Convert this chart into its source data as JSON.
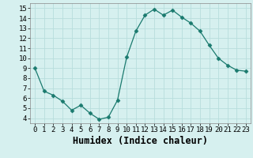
{
  "x": [
    0,
    1,
    2,
    3,
    4,
    5,
    6,
    7,
    8,
    9,
    10,
    11,
    12,
    13,
    14,
    15,
    16,
    17,
    18,
    19,
    20,
    21,
    22,
    23
  ],
  "y": [
    9.0,
    6.7,
    6.3,
    5.7,
    4.8,
    5.3,
    4.5,
    3.9,
    4.1,
    5.8,
    10.1,
    12.7,
    14.3,
    14.9,
    14.3,
    14.8,
    14.1,
    13.5,
    12.7,
    11.3,
    10.0,
    9.3,
    8.8,
    8.7
  ],
  "line_color": "#1a7a6e",
  "marker": "D",
  "marker_size": 2.5,
  "bg_color": "#d6f0ef",
  "grid_color": "#b8dedd",
  "xlabel": "Humidex (Indice chaleur)",
  "xlim": [
    -0.5,
    23.5
  ],
  "ylim": [
    3.5,
    15.5
  ],
  "yticks": [
    4,
    5,
    6,
    7,
    8,
    9,
    10,
    11,
    12,
    13,
    14,
    15
  ],
  "xticks": [
    0,
    1,
    2,
    3,
    4,
    5,
    6,
    7,
    8,
    9,
    10,
    11,
    12,
    13,
    14,
    15,
    16,
    17,
    18,
    19,
    20,
    21,
    22,
    23
  ],
  "tick_fontsize": 6.5,
  "xlabel_fontsize": 8.5
}
